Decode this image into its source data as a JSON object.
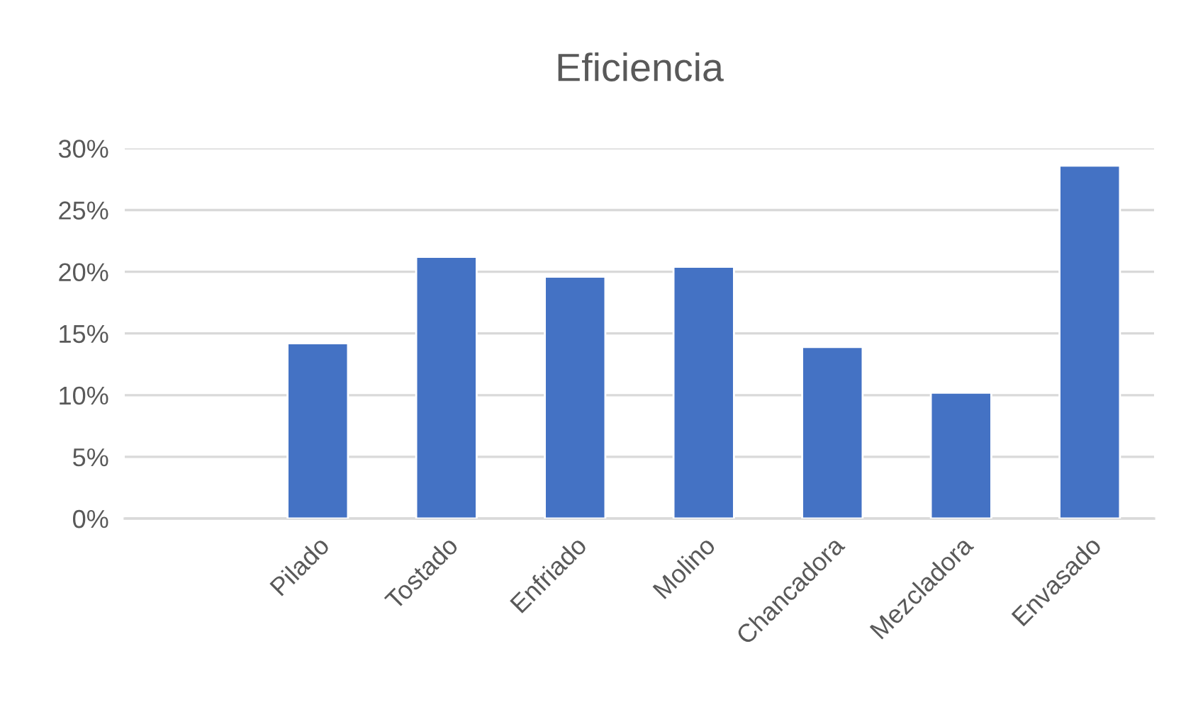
{
  "chart_data": {
    "type": "bar",
    "title": "Eficiencia",
    "categories": [
      null,
      "Pilado",
      "Tostado",
      "Enfriado",
      "Molino",
      "Chancadora",
      "Mezcladora",
      "Envasado"
    ],
    "values": [
      null,
      14.2,
      21.2,
      19.6,
      20.4,
      13.9,
      10.2,
      28.6
    ],
    "color": "#4472c4",
    "ylim": [
      0,
      30
    ],
    "yticks": [
      {
        "value": 0,
        "label": "0%"
      },
      {
        "value": 5,
        "label": "5%"
      },
      {
        "value": 10,
        "label": "10%"
      },
      {
        "value": 15,
        "label": "15%"
      },
      {
        "value": 20,
        "label": "20%"
      },
      {
        "value": 25,
        "label": "25%"
      },
      {
        "value": 30,
        "label": "30%"
      }
    ],
    "grid": "y",
    "legend": false
  }
}
